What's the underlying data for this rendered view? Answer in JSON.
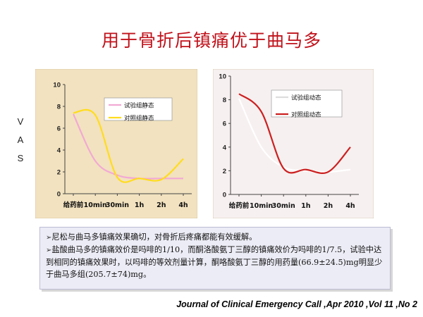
{
  "slide_title": "用于骨折后镇痛优于曲马多",
  "vas_letters": [
    "V",
    "A",
    "S"
  ],
  "notes": [
    {
      "bullet": "➢",
      "text": "尼松与曲马多镇痛效果确切，对骨折后疼痛都能有效缓解。"
    },
    {
      "bullet": "➢",
      "text": "盐酸曲马多的镇痛效价是吗啡的1/10，而酮洛酸氨丁三醇的镇痛效价为吗啡的1/7.5，试验中达到相同的镇痛效果时，以吗啡的等效剂量计算，酮咯酸氨丁三醇的用药量(66.9±24.5)mg明显少于曲马多组(205.7±74)mg。"
    }
  ],
  "citation": "Journal of Clinical Emergency Call ,Apr 2010 ,Vol 11 ,No 2",
  "colors": {
    "title": "#c0121b",
    "left_background": "#f2e2bf",
    "right_background": "#f7f0f0"
  },
  "chart_data": [
    {
      "type": "line",
      "x": [
        "给药前",
        "10min",
        "30min",
        "1h",
        "2h",
        "4h"
      ],
      "ylim": [
        0,
        10
      ],
      "yticks": [
        0,
        2,
        4,
        6,
        8,
        10
      ],
      "series": [
        {
          "name": "试验组静态",
          "color": "#f2a9d4",
          "values": [
            7.3,
            3.0,
            1.7,
            1.4,
            1.4,
            1.4
          ]
        },
        {
          "name": "对照组静态",
          "color": "#ffdc1e",
          "values": [
            7.4,
            7.2,
            1.5,
            1.4,
            1.3,
            3.2
          ]
        }
      ],
      "legend": "top-right",
      "background": "#f2e2bf"
    },
    {
      "type": "line",
      "x": [
        "给药前",
        "10min",
        "30min",
        "1h",
        "2h",
        "4h"
      ],
      "ylim": [
        0,
        10
      ],
      "yticks": [
        0,
        2,
        4,
        6,
        8,
        10
      ],
      "series": [
        {
          "name": "试验组动态",
          "color": "#ffffff",
          "values": [
            8.1,
            4.0,
            2.3,
            2.0,
            1.9,
            2.1
          ]
        },
        {
          "name": "对照组动态",
          "color": "#cc2020",
          "values": [
            8.5,
            7.0,
            2.2,
            2.1,
            1.9,
            4.0
          ]
        }
      ],
      "legend": "top-right",
      "background": "#f7f0f0"
    }
  ]
}
